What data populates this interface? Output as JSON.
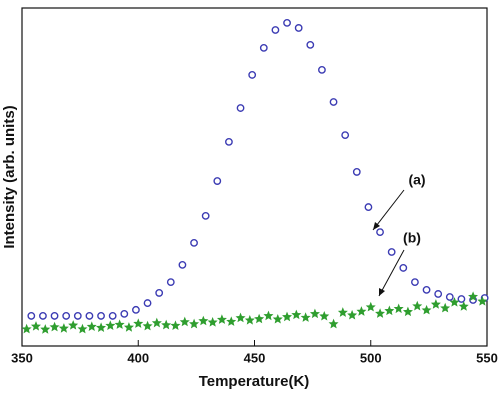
{
  "chart_data": {
    "type": "scatter",
    "x_label": "Temperature(K)",
    "y_label": "Intensity (arb. units)",
    "xlim": [
      350,
      550
    ],
    "xticks": [
      350,
      400,
      450,
      500,
      550
    ],
    "ylim": [
      0,
      100
    ],
    "series": [
      {
        "color": "#3b3bb3",
        "marker": "circle",
        "x": [
          354,
          359,
          364,
          369,
          374,
          379,
          384,
          389,
          394,
          399,
          404,
          409,
          414,
          419,
          424,
          429,
          434,
          439,
          444,
          449,
          454,
          459,
          464,
          469,
          474,
          479,
          484,
          489,
          494,
          499,
          504,
          509,
          514,
          519,
          524,
          529,
          534,
          539,
          544,
          549
        ],
        "values": [
          8.9,
          8.9,
          8.9,
          8.9,
          8.9,
          8.9,
          8.9,
          8.9,
          9.5,
          10.7,
          12.7,
          15.7,
          18.9,
          24.0,
          30.5,
          38.5,
          48.8,
          60.4,
          70.4,
          80.2,
          88.2,
          93.5,
          95.6,
          94.1,
          89.1,
          81.7,
          72.2,
          62.4,
          51.5,
          41.1,
          33.7,
          27.8,
          23.1,
          18.9,
          16.6,
          15.4,
          14.5,
          13.9,
          13.6,
          14.2
        ]
      },
      {
        "color": "#2f9e2f",
        "marker": "star",
        "x": [
          352,
          356,
          360,
          364,
          368,
          372,
          376,
          380,
          384,
          388,
          392,
          396,
          400,
          404,
          408,
          412,
          416,
          420,
          424,
          428,
          432,
          436,
          440,
          444,
          448,
          452,
          456,
          460,
          464,
          468,
          472,
          476,
          480,
          484,
          488,
          492,
          496,
          500,
          504,
          508,
          512,
          516,
          520,
          524,
          528,
          532,
          536,
          540,
          544,
          548
        ],
        "values": [
          5.0,
          5.8,
          4.9,
          5.6,
          5.2,
          6.1,
          5.0,
          5.7,
          5.4,
          6.0,
          6.3,
          5.5,
          6.6,
          5.9,
          6.8,
          6.2,
          6.0,
          7.1,
          6.5,
          7.4,
          7.0,
          7.8,
          7.2,
          8.3,
          7.6,
          8.0,
          8.9,
          7.9,
          8.6,
          9.2,
          8.4,
          9.5,
          8.8,
          6.5,
          9.9,
          9.1,
          10.2,
          11.5,
          9.6,
          10.4,
          11.0,
          10.1,
          11.8,
          10.6,
          12.3,
          11.2,
          12.9,
          11.7,
          14.6,
          13.2
        ]
      }
    ],
    "annotations": [
      "(a)",
      "(b)"
    ]
  }
}
